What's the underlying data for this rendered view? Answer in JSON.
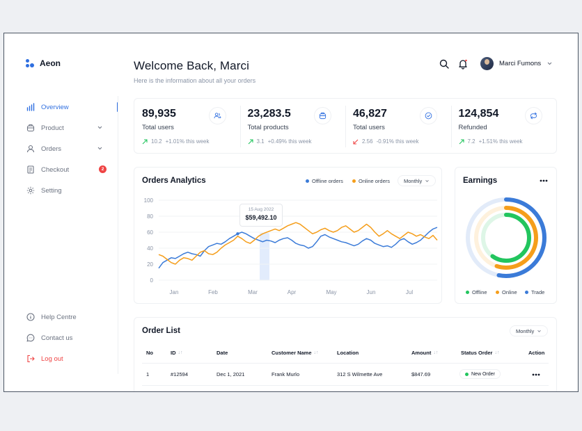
{
  "app": {
    "name": "Aeon"
  },
  "colors": {
    "accent": "#2f6fe0",
    "offline": "#3b7bd8",
    "online": "#f59e1b",
    "trade": "#22c55e",
    "danger": "#ef4444"
  },
  "sidebar": {
    "items": [
      {
        "label": "Overview",
        "icon": "bar-chart-icon",
        "active": true
      },
      {
        "label": "Product",
        "icon": "box-icon",
        "has_chevron": true
      },
      {
        "label": "Orders",
        "icon": "user-icon",
        "has_chevron": true
      },
      {
        "label": "Checkout",
        "icon": "receipt-icon",
        "badge": "2"
      },
      {
        "label": "Setting",
        "icon": "gear-icon"
      }
    ],
    "bottom_items": [
      {
        "label": "Help Centre",
        "icon": "info-icon"
      },
      {
        "label": "Contact us",
        "icon": "chat-icon"
      },
      {
        "label": "Log out",
        "icon": "logout-icon"
      }
    ]
  },
  "header": {
    "title": "Welcome Back, Marci",
    "subtitle": "Here is the information about all your orders",
    "user_name": "Marci Fumons"
  },
  "stats": [
    {
      "value": "89,935",
      "label": "Total users",
      "trend_value": "10.2",
      "trend_text": "+1.01% this week",
      "trend": "up",
      "icon": "users-icon"
    },
    {
      "value": "23,283.5",
      "label": "Total products",
      "trend_value": "3.1",
      "trend_text": "+0.49% this week",
      "trend": "up",
      "icon": "box-icon"
    },
    {
      "value": "46,827",
      "label": "Total users",
      "trend_value": "2.56",
      "trend_text": "-0.91% this week",
      "trend": "down",
      "icon": "check-circle-icon"
    },
    {
      "value": "124,854",
      "label": "Refunded",
      "trend_value": "7.2",
      "trend_text": "+1.51% this week",
      "trend": "up",
      "icon": "share-icon"
    }
  ],
  "orders_analytics": {
    "title": "Orders Analytics",
    "legend": [
      "Offline orders",
      "Online orders"
    ],
    "period": "Monthly",
    "tooltip": {
      "date": "15 Aug 2022",
      "value": "$59,492.10"
    }
  },
  "chart_data": {
    "type": "line",
    "xlabels": [
      "Jan",
      "Feb",
      "Mar",
      "Apr",
      "May",
      "Jun",
      "Jul"
    ],
    "ylabels": [
      "100",
      "80",
      "60",
      "40",
      "20",
      "0"
    ],
    "ylim": [
      0,
      100
    ],
    "grid": true,
    "legend_position": "top-right",
    "series": [
      {
        "name": "Offline orders",
        "color": "#3b7bd8",
        "values": [
          15,
          22,
          25,
          28,
          27,
          30,
          33,
          35,
          33,
          32,
          30,
          37,
          42,
          44,
          46,
          45,
          48,
          52,
          55,
          58,
          60,
          58,
          55,
          52,
          50,
          48,
          50,
          49,
          47,
          50,
          52,
          53,
          50,
          46,
          44,
          43,
          40,
          42,
          48,
          55,
          57,
          54,
          52,
          50,
          48,
          47,
          45,
          43,
          45,
          49,
          52,
          50,
          46,
          44,
          42,
          43,
          41,
          45,
          50,
          52,
          48,
          45,
          47,
          50,
          55,
          60,
          64,
          66
        ]
      },
      {
        "name": "Online orders",
        "color": "#f59e1b",
        "values": [
          32,
          30,
          26,
          22,
          20,
          25,
          28,
          27,
          25,
          30,
          35,
          37,
          33,
          32,
          35,
          40,
          44,
          47,
          50,
          55,
          52,
          48,
          46,
          50,
          55,
          58,
          60,
          62,
          64,
          62,
          65,
          68,
          70,
          72,
          70,
          66,
          62,
          58,
          60,
          63,
          65,
          62,
          60,
          62,
          66,
          68,
          64,
          60,
          62,
          66,
          70,
          66,
          60,
          55,
          58,
          62,
          58,
          55,
          52,
          56,
          60,
          58,
          55,
          57,
          54,
          52,
          56,
          50
        ]
      }
    ]
  },
  "earnings": {
    "title": "Earnings",
    "legend": [
      "Offline",
      "Online",
      "Trade"
    ],
    "rings": [
      {
        "name": "Offline",
        "color": "#3b7bd8",
        "fraction": 0.53
      },
      {
        "name": "Online",
        "color": "#f59e1b",
        "fraction": 0.55
      },
      {
        "name": "Trade",
        "color": "#22c55e",
        "fraction": 0.6
      }
    ]
  },
  "order_list": {
    "title": "Order List",
    "period": "Monthly",
    "columns": [
      "No",
      "ID",
      "Date",
      "Customer Name",
      "Location",
      "Amount",
      "Status Order",
      "Action"
    ],
    "rows": [
      {
        "no": "1",
        "id": "#12594",
        "date": "Dec 1, 2021",
        "customer": "Frank Murlo",
        "location": "312 S Wilmette Ave",
        "amount": "$847.69",
        "status": "New Order"
      }
    ]
  }
}
